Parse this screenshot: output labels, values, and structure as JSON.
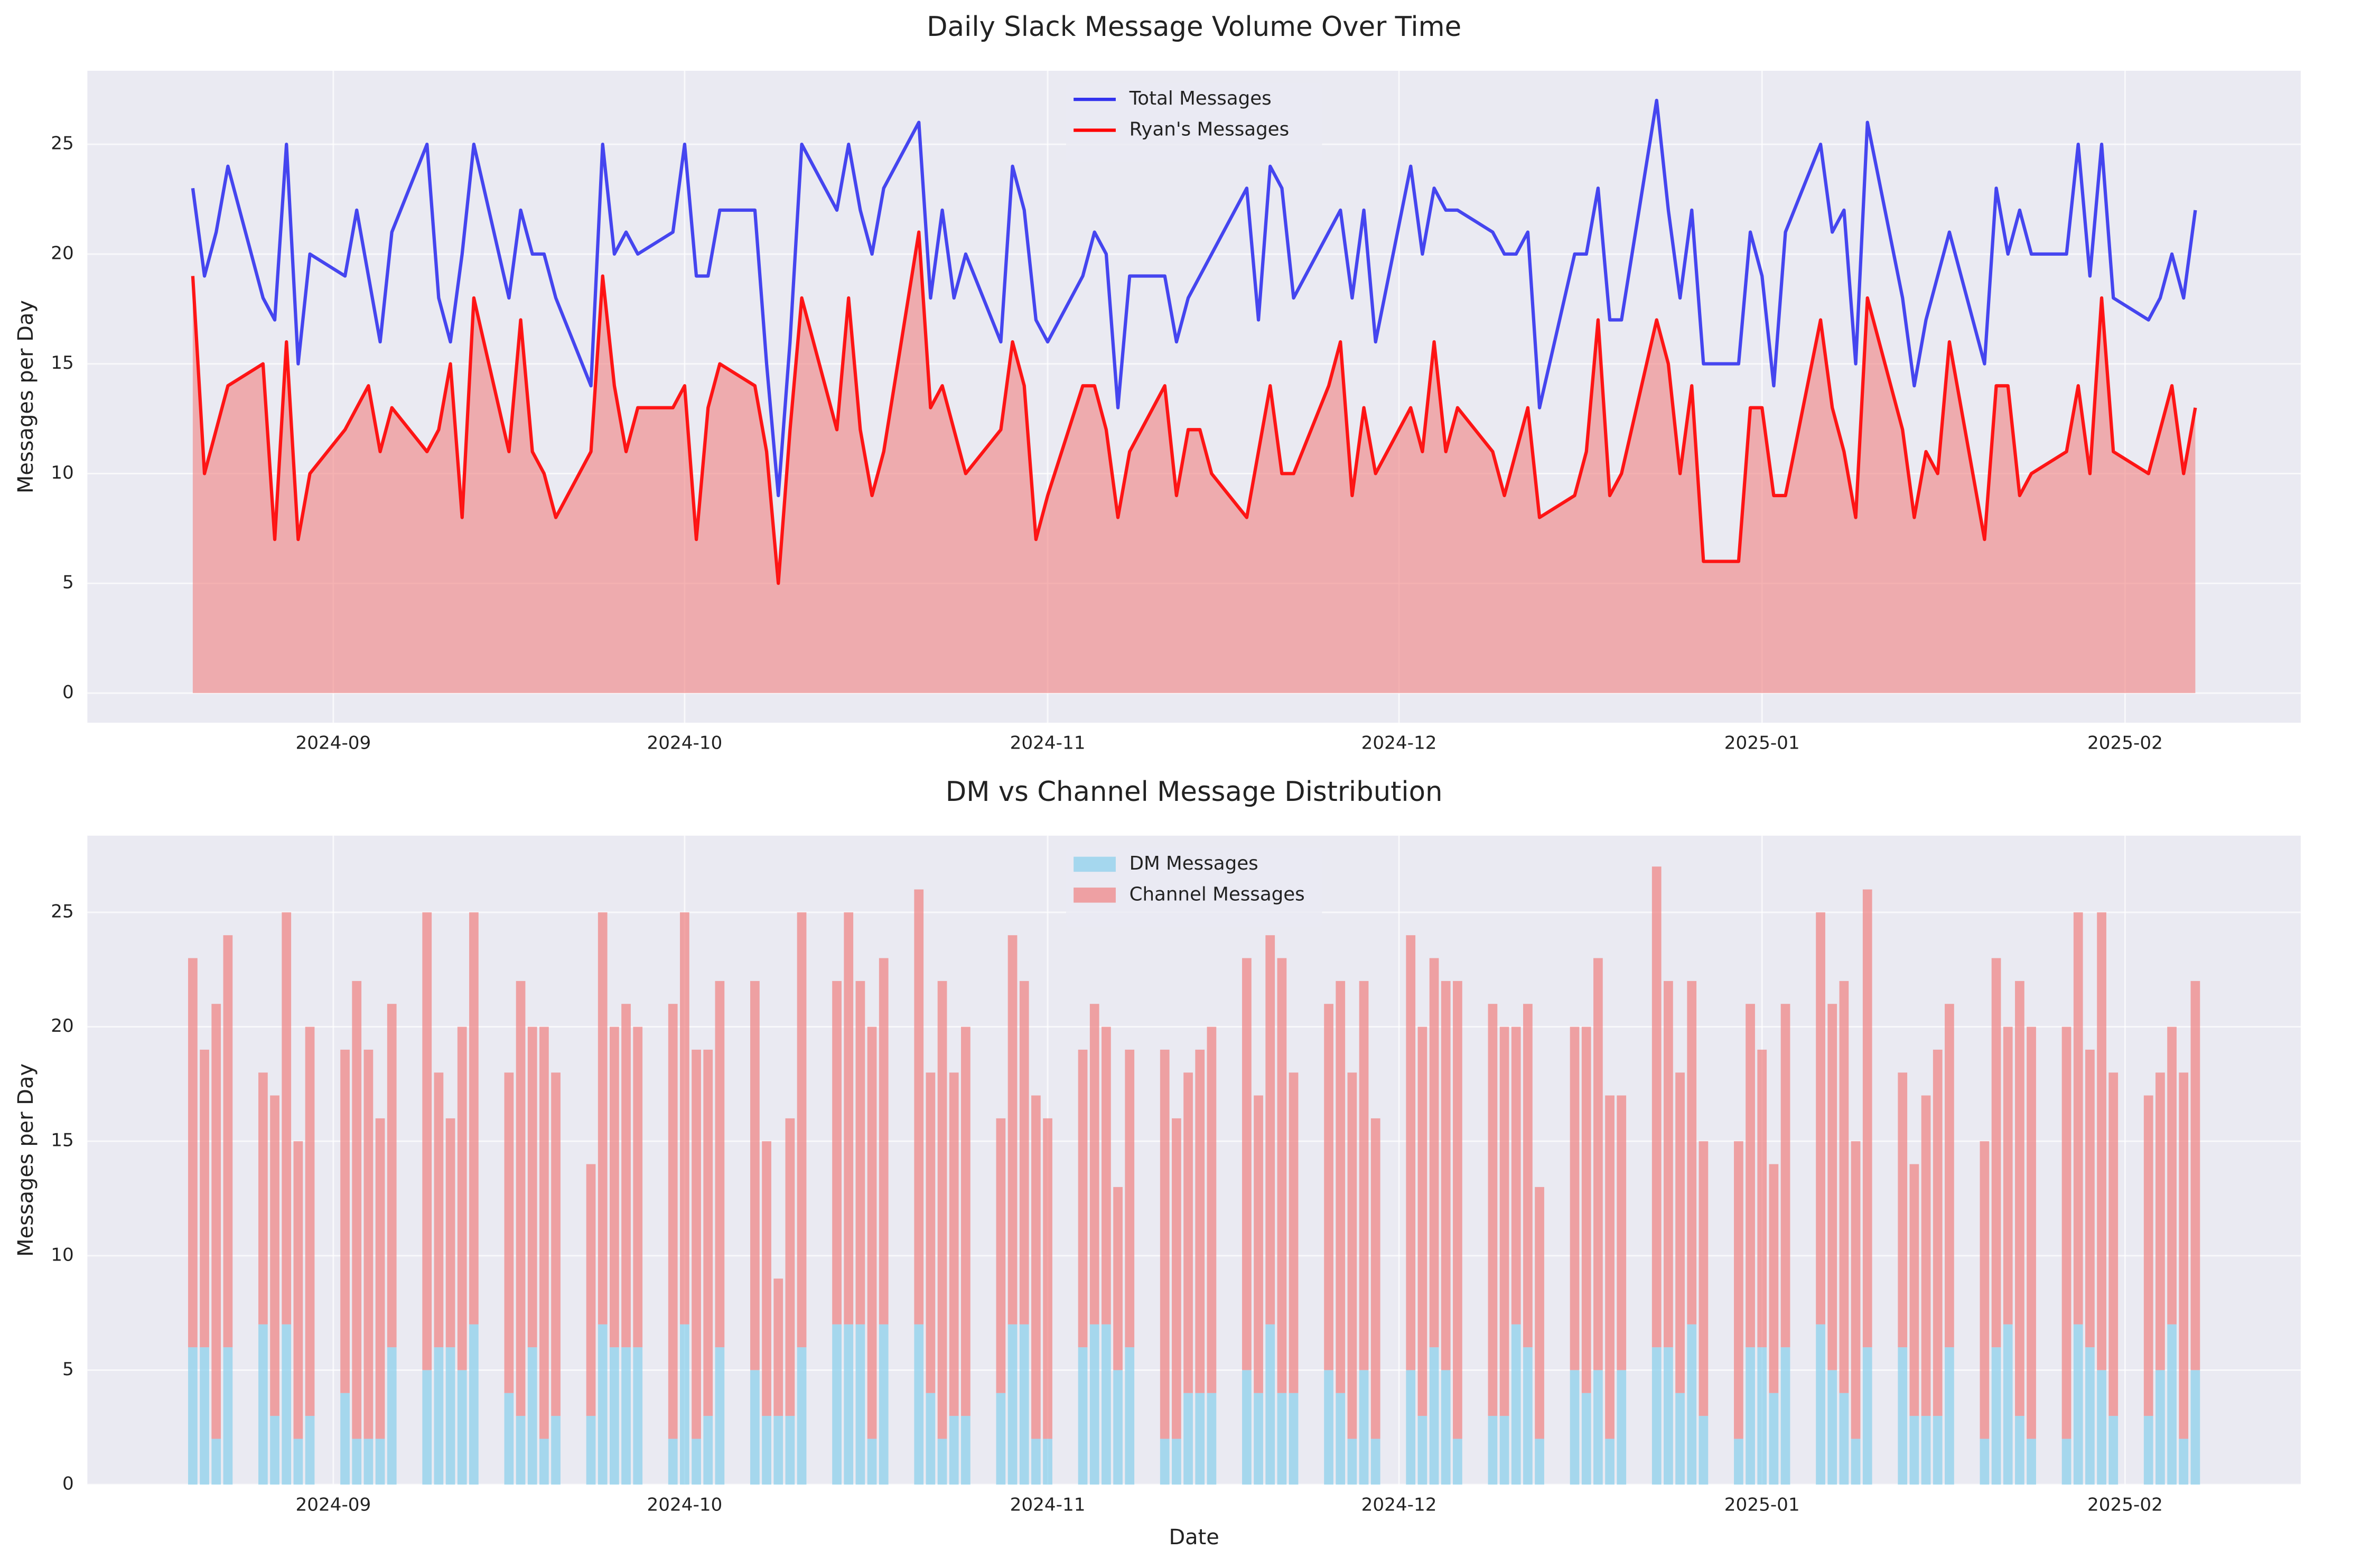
{
  "chart_data": [
    {
      "type": "line",
      "title": "Daily Slack Message Volume Over Time",
      "ylabel": "Messages per Day",
      "x": [
        "2024-08-20",
        "2024-08-21",
        "2024-08-22",
        "2024-08-23",
        "2024-08-26",
        "2024-08-27",
        "2024-08-28",
        "2024-08-29",
        "2024-08-30",
        "2024-09-02",
        "2024-09-03",
        "2024-09-04",
        "2024-09-05",
        "2024-09-06",
        "2024-09-09",
        "2024-09-10",
        "2024-09-11",
        "2024-09-12",
        "2024-09-13",
        "2024-09-16",
        "2024-09-17",
        "2024-09-18",
        "2024-09-19",
        "2024-09-20",
        "2024-09-23",
        "2024-09-24",
        "2024-09-25",
        "2024-09-26",
        "2024-09-27",
        "2024-09-30",
        "2024-10-01",
        "2024-10-02",
        "2024-10-03",
        "2024-10-04",
        "2024-10-07",
        "2024-10-08",
        "2024-10-09",
        "2024-10-10",
        "2024-10-11",
        "2024-10-14",
        "2024-10-15",
        "2024-10-16",
        "2024-10-17",
        "2024-10-18",
        "2024-10-21",
        "2024-10-22",
        "2024-10-23",
        "2024-10-24",
        "2024-10-25",
        "2024-10-28",
        "2024-10-29",
        "2024-10-30",
        "2024-10-31",
        "2024-11-01",
        "2024-11-04",
        "2024-11-05",
        "2024-11-06",
        "2024-11-07",
        "2024-11-08",
        "2024-11-11",
        "2024-11-12",
        "2024-11-13",
        "2024-11-14",
        "2024-11-15",
        "2024-11-18",
        "2024-11-19",
        "2024-11-20",
        "2024-11-21",
        "2024-11-22",
        "2024-11-25",
        "2024-11-26",
        "2024-11-27",
        "2024-11-28",
        "2024-11-29",
        "2024-12-02",
        "2024-12-03",
        "2024-12-04",
        "2024-12-05",
        "2024-12-06",
        "2024-12-09",
        "2024-12-10",
        "2024-12-11",
        "2024-12-12",
        "2024-12-13",
        "2024-12-16",
        "2024-12-17",
        "2024-12-18",
        "2024-12-19",
        "2024-12-20",
        "2024-12-23",
        "2024-12-24",
        "2024-12-25",
        "2024-12-26",
        "2024-12-27",
        "2024-12-30",
        "2024-12-31",
        "2025-01-01",
        "2025-01-02",
        "2025-01-03",
        "2025-01-06",
        "2025-01-07",
        "2025-01-08",
        "2025-01-09",
        "2025-01-10",
        "2025-01-13",
        "2025-01-14",
        "2025-01-15",
        "2025-01-16",
        "2025-01-17",
        "2025-01-20",
        "2025-01-21",
        "2025-01-22",
        "2025-01-23",
        "2025-01-24",
        "2025-01-27",
        "2025-01-28",
        "2025-01-29",
        "2025-01-30",
        "2025-01-31",
        "2025-02-03",
        "2025-02-04",
        "2025-02-05",
        "2025-02-06",
        "2025-02-07"
      ],
      "series": [
        {
          "name": "Total Messages",
          "color": "#3333ee",
          "values": [
            23,
            19,
            21,
            24,
            18,
            17,
            25,
            15,
            20,
            19,
            22,
            19,
            16,
            21,
            25,
            18,
            16,
            20,
            25,
            18,
            22,
            20,
            20,
            18,
            14,
            25,
            20,
            21,
            20,
            21,
            25,
            19,
            19,
            22,
            22,
            15,
            9,
            16,
            25,
            22,
            25,
            22,
            20,
            23,
            26,
            18,
            22,
            18,
            20,
            16,
            24,
            22,
            17,
            16,
            19,
            21,
            20,
            13,
            19,
            19,
            16,
            18,
            19,
            20,
            23,
            17,
            24,
            23,
            18,
            21,
            22,
            18,
            22,
            16,
            24,
            20,
            23,
            22,
            22,
            21,
            20,
            20,
            21,
            13,
            20,
            20,
            23,
            17,
            17,
            27,
            22,
            18,
            22,
            15,
            15,
            21,
            19,
            14,
            21,
            25,
            21,
            22,
            15,
            26,
            18,
            14,
            17,
            19,
            21,
            15,
            23,
            20,
            22,
            20,
            20,
            25,
            19,
            25,
            18,
            17,
            18,
            20,
            18,
            22
          ]
        },
        {
          "name": "Ryan's Messages",
          "color": "#ff0000",
          "area_color": "#f08080",
          "values": [
            19,
            10,
            12,
            14,
            15,
            7,
            16,
            7,
            10,
            12,
            13,
            14,
            11,
            13,
            11,
            12,
            15,
            8,
            18,
            11,
            17,
            11,
            10,
            8,
            11,
            19,
            14,
            11,
            13,
            13,
            14,
            7,
            13,
            15,
            14,
            11,
            5,
            12,
            18,
            12,
            18,
            12,
            9,
            11,
            21,
            13,
            14,
            12,
            10,
            12,
            16,
            14,
            7,
            9,
            14,
            14,
            12,
            8,
            11,
            14,
            9,
            12,
            12,
            10,
            8,
            11,
            14,
            10,
            10,
            14,
            16,
            9,
            13,
            10,
            13,
            11,
            16,
            11,
            13,
            11,
            9,
            11,
            13,
            8,
            9,
            11,
            17,
            9,
            10,
            17,
            15,
            10,
            14,
            6,
            6,
            13,
            13,
            9,
            9,
            17,
            13,
            11,
            8,
            18,
            12,
            8,
            11,
            10,
            16,
            7,
            14,
            14,
            9,
            10,
            11,
            14,
            10,
            18,
            11,
            10,
            12,
            14,
            10,
            13
          ]
        }
      ],
      "xlim": [
        "2024-08-11",
        "2025-02-16"
      ],
      "xticks": [
        {
          "value": "2024-09-01",
          "label": "2024-09"
        },
        {
          "value": "2024-10-01",
          "label": "2024-10"
        },
        {
          "value": "2024-11-01",
          "label": "2024-11"
        },
        {
          "value": "2024-12-01",
          "label": "2024-12"
        },
        {
          "value": "2025-01-01",
          "label": "2025-01"
        },
        {
          "value": "2025-02-01",
          "label": "2025-02"
        }
      ],
      "ylim": [
        -1.35,
        28.35
      ],
      "yticks": [
        0,
        5,
        10,
        15,
        20,
        25
      ],
      "grid": true,
      "legend": "upper center"
    },
    {
      "type": "stacked_bar",
      "title": "DM vs Channel Message Distribution",
      "xlabel": "Date",
      "ylabel": "Messages per Day",
      "x": [
        "2024-08-20",
        "2024-08-21",
        "2024-08-22",
        "2024-08-23",
        "2024-08-26",
        "2024-08-27",
        "2024-08-28",
        "2024-08-29",
        "2024-08-30",
        "2024-09-02",
        "2024-09-03",
        "2024-09-04",
        "2024-09-05",
        "2024-09-06",
        "2024-09-09",
        "2024-09-10",
        "2024-09-11",
        "2024-09-12",
        "2024-09-13",
        "2024-09-16",
        "2024-09-17",
        "2024-09-18",
        "2024-09-19",
        "2024-09-20",
        "2024-09-23",
        "2024-09-24",
        "2024-09-25",
        "2024-09-26",
        "2024-09-27",
        "2024-09-30",
        "2024-10-01",
        "2024-10-02",
        "2024-10-03",
        "2024-10-04",
        "2024-10-07",
        "2024-10-08",
        "2024-10-09",
        "2024-10-10",
        "2024-10-11",
        "2024-10-14",
        "2024-10-15",
        "2024-10-16",
        "2024-10-17",
        "2024-10-18",
        "2024-10-21",
        "2024-10-22",
        "2024-10-23",
        "2024-10-24",
        "2024-10-25",
        "2024-10-28",
        "2024-10-29",
        "2024-10-30",
        "2024-10-31",
        "2024-11-01",
        "2024-11-04",
        "2024-11-05",
        "2024-11-06",
        "2024-11-07",
        "2024-11-08",
        "2024-11-11",
        "2024-11-12",
        "2024-11-13",
        "2024-11-14",
        "2024-11-15",
        "2024-11-18",
        "2024-11-19",
        "2024-11-20",
        "2024-11-21",
        "2024-11-22",
        "2024-11-25",
        "2024-11-26",
        "2024-11-27",
        "2024-11-28",
        "2024-11-29",
        "2024-12-02",
        "2024-12-03",
        "2024-12-04",
        "2024-12-05",
        "2024-12-06",
        "2024-12-09",
        "2024-12-10",
        "2024-12-11",
        "2024-12-12",
        "2024-12-13",
        "2024-12-16",
        "2024-12-17",
        "2024-12-18",
        "2024-12-19",
        "2024-12-20",
        "2024-12-23",
        "2024-12-24",
        "2024-12-25",
        "2024-12-26",
        "2024-12-27",
        "2024-12-30",
        "2024-12-31",
        "2025-01-01",
        "2025-01-02",
        "2025-01-03",
        "2025-01-06",
        "2025-01-07",
        "2025-01-08",
        "2025-01-09",
        "2025-01-10",
        "2025-01-13",
        "2025-01-14",
        "2025-01-15",
        "2025-01-16",
        "2025-01-17",
        "2025-01-20",
        "2025-01-21",
        "2025-01-22",
        "2025-01-23",
        "2025-01-24",
        "2025-01-27",
        "2025-01-28",
        "2025-01-29",
        "2025-01-30",
        "2025-01-31",
        "2025-02-03",
        "2025-02-04",
        "2025-02-05",
        "2025-02-06",
        "2025-02-07"
      ],
      "series": [
        {
          "name": "DM Messages",
          "color": "#87ceeb",
          "values": [
            6,
            6,
            2,
            6,
            7,
            3,
            7,
            2,
            3,
            4,
            2,
            2,
            2,
            6,
            5,
            6,
            6,
            5,
            7,
            4,
            3,
            6,
            2,
            3,
            3,
            7,
            6,
            6,
            6,
            2,
            7,
            2,
            3,
            6,
            5,
            3,
            3,
            3,
            6,
            7,
            7,
            7,
            2,
            7,
            7,
            4,
            2,
            3,
            3,
            4,
            7,
            7,
            2,
            2,
            6,
            7,
            7,
            5,
            6,
            2,
            2,
            4,
            4,
            4,
            5,
            4,
            7,
            4,
            4,
            5,
            4,
            2,
            5,
            2,
            5,
            3,
            6,
            5,
            2,
            3,
            3,
            7,
            6,
            2,
            5,
            4,
            5,
            2,
            5,
            6,
            6,
            4,
            7,
            3,
            2,
            6,
            6,
            4,
            6,
            7,
            5,
            4,
            2,
            6,
            6,
            3,
            3,
            3,
            6,
            2,
            6,
            7,
            3,
            2,
            2,
            7,
            6,
            5,
            3,
            3,
            5,
            7,
            2,
            5
          ]
        },
        {
          "name": "Channel Messages",
          "color": "#f08080",
          "values": [
            17,
            13,
            19,
            18,
            11,
            14,
            18,
            13,
            17,
            15,
            20,
            17,
            14,
            15,
            20,
            12,
            10,
            15,
            18,
            14,
            19,
            14,
            18,
            15,
            11,
            18,
            14,
            15,
            14,
            19,
            18,
            17,
            16,
            16,
            17,
            12,
            6,
            13,
            19,
            15,
            18,
            15,
            18,
            16,
            19,
            14,
            20,
            15,
            17,
            12,
            17,
            15,
            15,
            14,
            13,
            14,
            13,
            8,
            13,
            17,
            14,
            14,
            15,
            16,
            18,
            13,
            17,
            19,
            14,
            16,
            18,
            16,
            17,
            14,
            19,
            17,
            17,
            17,
            20,
            18,
            17,
            13,
            15,
            11,
            15,
            16,
            18,
            15,
            12,
            21,
            16,
            14,
            15,
            12,
            13,
            15,
            13,
            10,
            15,
            18,
            16,
            18,
            13,
            20,
            12,
            11,
            14,
            16,
            15,
            13,
            17,
            13,
            19,
            18,
            18,
            18,
            13,
            20,
            15,
            14,
            13,
            13,
            16,
            17
          ]
        }
      ],
      "xlim": [
        "2024-08-11",
        "2025-02-16"
      ],
      "xticks": [
        {
          "value": "2024-09-01",
          "label": "2024-09"
        },
        {
          "value": "2024-10-01",
          "label": "2024-10"
        },
        {
          "value": "2024-11-01",
          "label": "2024-11"
        },
        {
          "value": "2024-12-01",
          "label": "2024-12"
        },
        {
          "value": "2025-01-01",
          "label": "2025-01"
        },
        {
          "value": "2025-02-01",
          "label": "2025-02"
        }
      ],
      "ylim": [
        0,
        28.35
      ],
      "yticks": [
        0,
        5,
        10,
        15,
        20,
        25
      ],
      "grid": true,
      "legend": "upper center"
    }
  ]
}
